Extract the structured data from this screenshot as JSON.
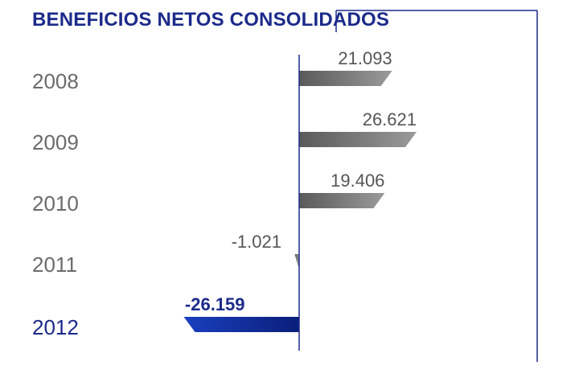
{
  "chart_data": {
    "type": "bar",
    "orientation": "horizontal",
    "title": "BENEFICIOS NETOS CONSOLIDADOS",
    "categories": [
      "2008",
      "2009",
      "2010",
      "2011",
      "2012"
    ],
    "values": [
      21093,
      26621,
      19406,
      -1021,
      -26159
    ],
    "value_labels": [
      "21.093",
      "26.621",
      "19.406",
      "-1.021",
      "-26.159"
    ],
    "highlight_category": "2012",
    "colors": {
      "title": "#1b2a8a",
      "bar_gray_start": "#5a5a5a",
      "bar_gray_end": "#9a9a9a",
      "bar_highlight_start": "#1a3fbf",
      "bar_highlight_end": "#0a1f7a",
      "axis": "#1b2a8a",
      "year_text": "#6b6b6b",
      "value_text": "#555555"
    }
  }
}
